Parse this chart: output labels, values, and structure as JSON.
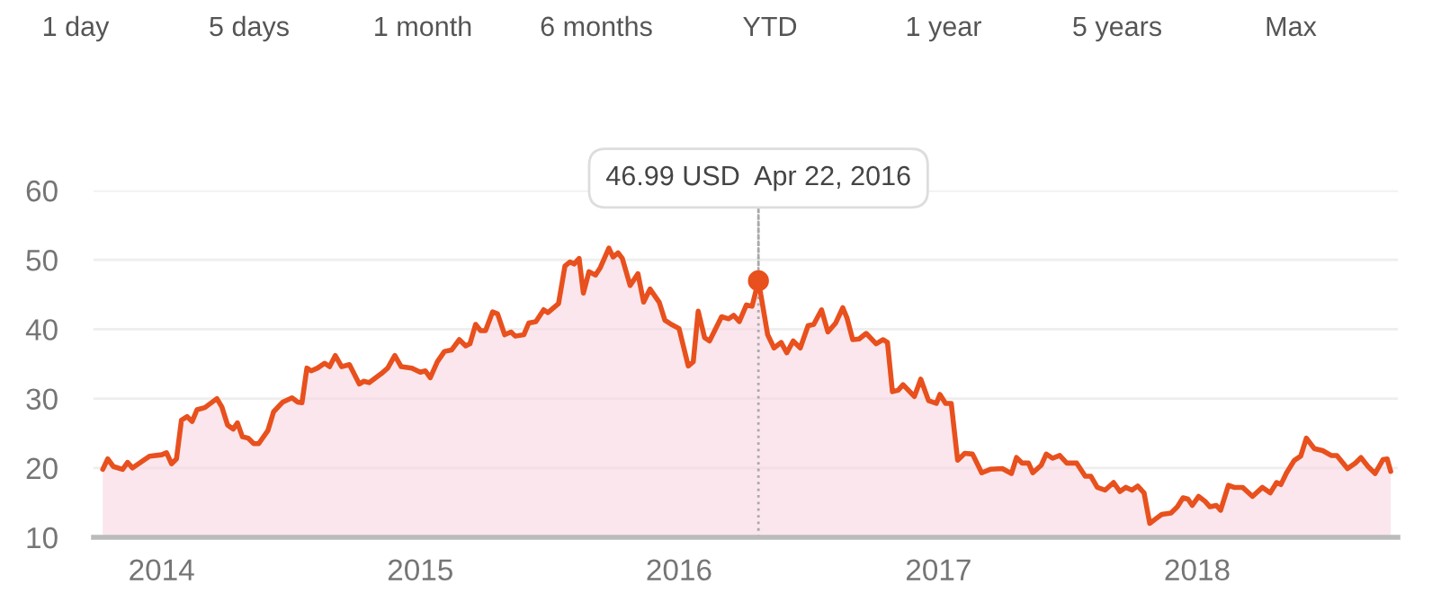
{
  "chart_data": {
    "type": "area",
    "annotations": [
      "1 day",
      "5 days",
      "1 month",
      "6 months",
      "YTD",
      "1 year",
      "5 years",
      "Max",
      {
        "text": "46.99 USD  Apr 22, 2016",
        "x": "2016-04-22",
        "y": 46.99
      }
    ],
    "series": [
      {
        "color": "#e8501d",
        "x": [
          "2013-10-10",
          "2013-10-17",
          "2013-10-25",
          "2013-11-07",
          "2013-11-14",
          "2013-11-21",
          "2013-12-15",
          "2014-01-01",
          "2014-01-08",
          "2014-01-15",
          "2014-01-22",
          "2014-01-29",
          "2014-02-06",
          "2014-02-13",
          "2014-02-20",
          "2014-03-03",
          "2014-03-20",
          "2014-03-27",
          "2014-04-04",
          "2014-04-12",
          "2014-04-18",
          "2014-04-25",
          "2014-05-03",
          "2014-05-11",
          "2014-05-18",
          "2014-05-31",
          "2014-06-08",
          "2014-06-21",
          "2014-07-04",
          "2014-07-12",
          "2014-07-18",
          "2014-07-25",
          "2014-07-31",
          "2014-08-09",
          "2014-08-19",
          "2014-08-26",
          "2014-09-03",
          "2014-09-12",
          "2014-09-23",
          "2014-10-07",
          "2014-10-13",
          "2014-10-21",
          "2014-11-07",
          "2014-11-16",
          "2014-11-26",
          "2014-12-05",
          "2014-12-20",
          "2015-01-01",
          "2015-01-08",
          "2015-01-15",
          "2015-01-25",
          "2015-02-04",
          "2015-02-14",
          "2015-02-25",
          "2015-03-06",
          "2015-03-12",
          "2015-03-20",
          "2015-03-27",
          "2015-04-03",
          "2015-04-13",
          "2015-04-20",
          "2015-04-30",
          "2015-05-09",
          "2015-05-15",
          "2015-05-27",
          "2015-06-03",
          "2015-06-13",
          "2015-06-24",
          "2015-06-30",
          "2015-07-15",
          "2015-07-24",
          "2015-07-31",
          "2015-08-06",
          "2015-08-13",
          "2015-08-19",
          "2015-08-27",
          "2015-09-05",
          "2015-09-12",
          "2015-09-24",
          "2015-09-30",
          "2015-10-07",
          "2015-10-13",
          "2015-10-24",
          "2015-11-04",
          "2015-11-12",
          "2015-11-21",
          "2015-12-04",
          "2015-12-12",
          "2015-12-21",
          "2016-01-01",
          "2016-01-14",
          "2016-01-21",
          "2016-01-28",
          "2016-02-06",
          "2016-02-13",
          "2016-03-01",
          "2016-03-11",
          "2016-03-18",
          "2016-03-26",
          "2016-04-05",
          "2016-04-13",
          "2016-04-22",
          "2016-05-05",
          "2016-05-14",
          "2016-05-24",
          "2016-06-01",
          "2016-06-10",
          "2016-06-20",
          "2016-07-01",
          "2016-07-09",
          "2016-07-20",
          "2016-07-29",
          "2016-08-09",
          "2016-08-19",
          "2016-08-25",
          "2016-09-02",
          "2016-09-11",
          "2016-09-21",
          "2016-10-05",
          "2016-10-15",
          "2016-10-21",
          "2016-10-28",
          "2016-11-05",
          "2016-11-12",
          "2016-11-28",
          "2016-12-07",
          "2016-12-18",
          "2016-12-29",
          "2017-01-03",
          "2017-01-11",
          "2017-01-19",
          "2017-01-28",
          "2017-02-07",
          "2017-02-18",
          "2017-03-03",
          "2017-03-15",
          "2017-04-01",
          "2017-04-14",
          "2017-04-21",
          "2017-04-29",
          "2017-05-08",
          "2017-05-14",
          "2017-05-26",
          "2017-06-02",
          "2017-06-11",
          "2017-06-21",
          "2017-07-01",
          "2017-07-15",
          "2017-07-27",
          "2017-08-04",
          "2017-08-13",
          "2017-08-24",
          "2017-09-05",
          "2017-09-14",
          "2017-09-22",
          "2017-10-01",
          "2017-10-09",
          "2017-10-18",
          "2017-10-26",
          "2017-11-04",
          "2017-11-12",
          "2017-11-25",
          "2017-12-04",
          "2017-12-12",
          "2017-12-19",
          "2017-12-25",
          "2018-01-03",
          "2018-01-12",
          "2018-01-19",
          "2018-01-28",
          "2018-02-03",
          "2018-02-14",
          "2018-02-22",
          "2018-03-06",
          "2018-03-20",
          "2018-04-03",
          "2018-04-14",
          "2018-04-23",
          "2018-04-29",
          "2018-05-07",
          "2018-05-18",
          "2018-05-27",
          "2018-06-04",
          "2018-06-15",
          "2018-06-27",
          "2018-07-09",
          "2018-07-17",
          "2018-08-01",
          "2018-08-12",
          "2018-08-20",
          "2018-08-30",
          "2018-09-09",
          "2018-09-20",
          "2018-09-26",
          "2018-10-01"
        ],
        "values": [
          19.8,
          21.3,
          20.2,
          19.8,
          20.8,
          20.0,
          21.7,
          21.9,
          22.2,
          20.6,
          21.3,
          26.9,
          27.4,
          26.7,
          28.4,
          28.7,
          30.0,
          28.8,
          26.2,
          25.6,
          26.5,
          24.5,
          24.3,
          23.5,
          23.5,
          25.4,
          28.1,
          29.5,
          30.1,
          29.5,
          29.4,
          34.4,
          34.0,
          34.4,
          35.1,
          34.6,
          36.2,
          34.6,
          34.9,
          32.1,
          32.5,
          32.3,
          33.6,
          34.4,
          36.2,
          34.6,
          34.4,
          33.8,
          34.0,
          33.0,
          35.3,
          36.8,
          37.0,
          38.5,
          37.6,
          37.9,
          40.7,
          39.8,
          39.8,
          42.5,
          42.2,
          39.2,
          39.6,
          39.0,
          39.2,
          40.9,
          41.1,
          42.8,
          42.4,
          43.7,
          49.1,
          49.7,
          49.4,
          50.2,
          45.2,
          48.3,
          47.8,
          48.9,
          51.7,
          50.4,
          51.0,
          50.2,
          46.3,
          48.0,
          43.9,
          45.8,
          43.9,
          41.3,
          40.7,
          40.1,
          34.7,
          35.3,
          42.6,
          38.8,
          38.3,
          41.8,
          41.5,
          42.0,
          41.1,
          43.5,
          43.3,
          47.0,
          39.2,
          37.3,
          38.1,
          36.6,
          38.3,
          37.3,
          40.5,
          40.7,
          42.8,
          39.6,
          40.9,
          43.1,
          41.6,
          38.5,
          38.6,
          39.4,
          37.9,
          38.5,
          38.1,
          31.0,
          31.2,
          32.0,
          30.3,
          32.8,
          29.7,
          29.3,
          30.6,
          29.3,
          29.3,
          21.1,
          22.1,
          22.0,
          19.3,
          19.8,
          19.9,
          19.2,
          21.5,
          20.7,
          20.7,
          19.3,
          20.4,
          22.0,
          21.4,
          21.8,
          20.7,
          20.7,
          18.8,
          18.8,
          17.2,
          16.8,
          17.9,
          16.6,
          17.2,
          16.8,
          17.4,
          16.4,
          12.0,
          12.7,
          13.3,
          13.5,
          14.4,
          15.7,
          15.5,
          14.6,
          15.9,
          15.2,
          14.4,
          14.6,
          13.9,
          17.5,
          17.2,
          17.2,
          15.9,
          17.2,
          16.4,
          17.9,
          17.6,
          19.3,
          21.1,
          21.7,
          24.3,
          22.8,
          22.5,
          21.8,
          21.8,
          19.9,
          20.7,
          21.5,
          20.2,
          19.2,
          21.2,
          21.3,
          19.5
        ]
      },
      {
        "type": "scatter",
        "color": "#e8501d",
        "marker": "circle",
        "x": [
          "2016-04-22"
        ],
        "values": [
          46.99
        ]
      }
    ],
    "ref_lines": [
      {
        "axis": "x",
        "value": "2016-04-22",
        "color": "#aaaaaa",
        "line_style": "dotted"
      }
    ],
    "xlim": [
      "2013-09-27",
      "2018-10-11"
    ],
    "xticks": [
      {
        "value": "2014-01-01",
        "label": "2014"
      },
      {
        "value": "2015-01-01",
        "label": "2015"
      },
      {
        "value": "2016-01-01",
        "label": "2016"
      },
      {
        "value": "2017-01-01",
        "label": "2017"
      },
      {
        "value": "2018-01-01",
        "label": "2018"
      }
    ],
    "ylim": [
      10,
      60
    ],
    "yticks": [
      10,
      20,
      30,
      40,
      50,
      60
    ],
    "grid": "y"
  }
}
